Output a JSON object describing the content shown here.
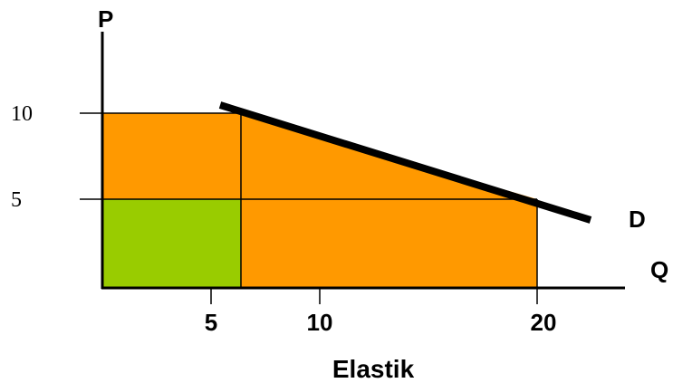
{
  "labels": {
    "y_axis": "P",
    "x_axis": "Q",
    "demand": "D",
    "caption": "Elastik"
  },
  "y_ticks": [
    "10",
    "5"
  ],
  "x_ticks": [
    "5",
    "10",
    "20"
  ],
  "colors": {
    "orange": "#FF9900",
    "green": "#99CC00",
    "axis": "#000000",
    "demand_line": "#000000"
  }
}
